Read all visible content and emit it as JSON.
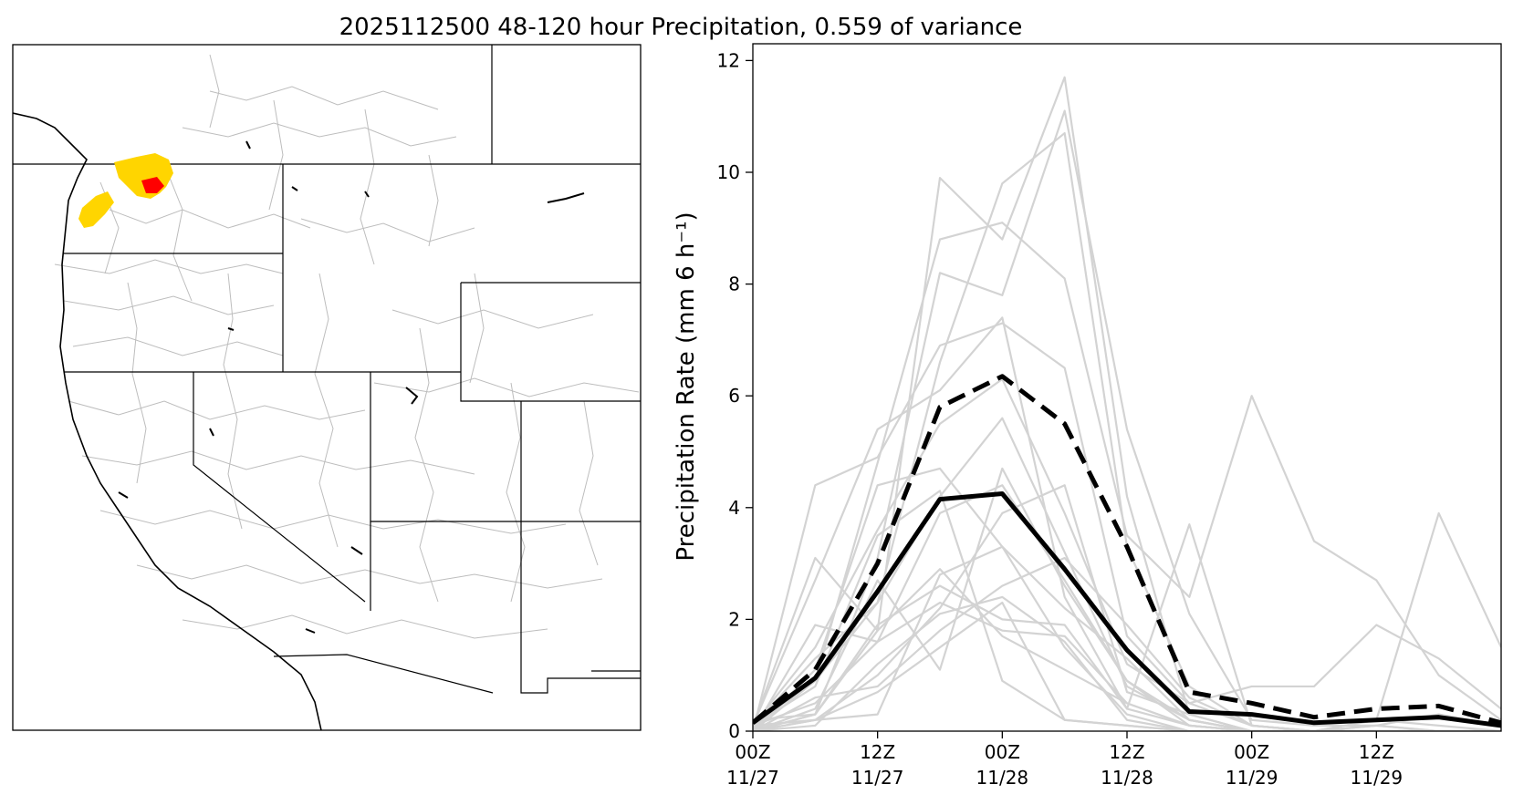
{
  "title": "2025112500 48-120 hour Precipitation, 0.559 of variance",
  "map": {
    "description_label": "Western US basin map",
    "colors": {
      "yellow": "#ffd500",
      "red": "#ff0000",
      "basin_lines": "#bdbdbd",
      "coast": "#000000"
    }
  },
  "chart_data": {
    "type": "line",
    "ylabel": "Precipitation Rate (mm 6 h⁻¹)",
    "ylim": [
      0,
      12.3
    ],
    "yticks": [
      0,
      2,
      4,
      6,
      8,
      10,
      12
    ],
    "xlim": [
      0,
      18
    ],
    "x": [
      0,
      1.5,
      3,
      4.5,
      6,
      7.5,
      9,
      10.5,
      12,
      13.5,
      15,
      16.5,
      18
    ],
    "xticks": [
      {
        "x": 0,
        "line1": "00Z",
        "line2": "11/27"
      },
      {
        "x": 3,
        "line1": "12Z",
        "line2": "11/27"
      },
      {
        "x": 6,
        "line1": "00Z",
        "line2": "11/28"
      },
      {
        "x": 9,
        "line1": "12Z",
        "line2": "11/28"
      },
      {
        "x": 12,
        "line1": "00Z",
        "line2": "11/29"
      },
      {
        "x": 15,
        "line1": "12Z",
        "line2": "11/29"
      }
    ],
    "colors": {
      "members": "#d3d3d3",
      "main": "#000000"
    },
    "series": [
      {
        "name": "member-1",
        "style": "member",
        "values": [
          0.1,
          3.1,
          1.8,
          9.9,
          8.8,
          11.7,
          4.2,
          0.3,
          0.0,
          0.0,
          0.1,
          0.0,
          0.0
        ]
      },
      {
        "name": "member-2",
        "style": "member",
        "values": [
          0.1,
          1.3,
          2.3,
          6.6,
          9.8,
          10.7,
          3.3,
          0.8,
          0.1,
          0.0,
          0.2,
          0.1,
          0.0
        ]
      },
      {
        "name": "member-3",
        "style": "member",
        "values": [
          0.2,
          0.3,
          3.1,
          8.2,
          7.8,
          11.1,
          5.4,
          2.1,
          0.2,
          0.1,
          0.1,
          0.0,
          0.0
        ]
      },
      {
        "name": "member-4",
        "style": "member",
        "values": [
          0.1,
          0.9,
          4.8,
          8.8,
          9.1,
          8.1,
          3.5,
          2.4,
          6.0,
          3.4,
          2.7,
          1.0,
          0.2
        ]
      },
      {
        "name": "member-5",
        "style": "member",
        "values": [
          0.0,
          4.4,
          4.9,
          6.9,
          7.3,
          6.5,
          1.7,
          0.5,
          0.8,
          0.8,
          1.9,
          1.3,
          0.4
        ]
      },
      {
        "name": "member-6",
        "style": "member",
        "values": [
          0.1,
          2.7,
          5.4,
          6.1,
          7.4,
          2.4,
          0.4,
          3.7,
          0.1,
          0.0,
          0.2,
          3.9,
          1.5
        ]
      },
      {
        "name": "member-7",
        "style": "member",
        "values": [
          0.1,
          1.5,
          3.6,
          5.5,
          6.3,
          3.9,
          1.2,
          0.5,
          0.1,
          0.0,
          0.1,
          0.3,
          0.1
        ]
      },
      {
        "name": "member-8",
        "style": "member",
        "values": [
          0.0,
          0.9,
          2.3,
          4.2,
          5.6,
          3.2,
          0.8,
          0.2,
          0.0,
          0.0,
          0.0,
          0.0,
          0.0
        ]
      },
      {
        "name": "member-9",
        "style": "member",
        "values": [
          0.1,
          0.5,
          1.6,
          3.9,
          4.4,
          2.7,
          0.9,
          0.1,
          0.0,
          0.0,
          0.0,
          0.0,
          0.0
        ]
      },
      {
        "name": "member-10",
        "style": "member",
        "values": [
          0.0,
          0.3,
          1.9,
          2.6,
          2.0,
          1.9,
          0.4,
          0.1,
          0.0,
          0.0,
          0.0,
          0.0,
          0.0
        ]
      },
      {
        "name": "member-11",
        "style": "member",
        "values": [
          0.0,
          1.1,
          4.4,
          4.7,
          3.3,
          1.5,
          0.3,
          0.0,
          0.0,
          0.0,
          0.0,
          0.0,
          0.0
        ]
      },
      {
        "name": "member-12",
        "style": "member",
        "values": [
          0.1,
          0.2,
          1.0,
          2.2,
          3.9,
          4.4,
          0.7,
          0.3,
          0.0,
          0.0,
          0.0,
          0.0,
          0.0
        ]
      },
      {
        "name": "member-13",
        "style": "member",
        "values": [
          0.0,
          0.6,
          0.8,
          1.8,
          2.6,
          3.1,
          1.9,
          0.6,
          0.1,
          0.0,
          0.0,
          0.0,
          0.0
        ]
      },
      {
        "name": "member-14",
        "style": "member",
        "values": [
          0.0,
          0.4,
          2.7,
          1.1,
          4.7,
          2.6,
          0.9,
          0.2,
          0.0,
          0.0,
          0.0,
          0.0,
          0.0
        ]
      },
      {
        "name": "member-15",
        "style": "member",
        "values": [
          0.1,
          0.8,
          3.5,
          4.3,
          0.9,
          0.2,
          0.1,
          0.0,
          0.0,
          0.0,
          0.0,
          0.0,
          0.0
        ]
      },
      {
        "name": "member-16",
        "style": "member",
        "values": [
          0.0,
          0.2,
          0.3,
          2.8,
          3.3,
          2.2,
          1.3,
          0.2,
          0.0,
          0.0,
          0.0,
          0.0,
          0.0
        ]
      },
      {
        "name": "member-17",
        "style": "member",
        "values": [
          0.0,
          1.9,
          1.6,
          2.3,
          1.8,
          1.7,
          0.5,
          0.1,
          0.0,
          0.0,
          0.0,
          0.0,
          0.0
        ]
      },
      {
        "name": "member-18",
        "style": "member",
        "values": [
          0.0,
          0.2,
          0.7,
          1.5,
          2.3,
          0.2,
          0.1,
          0.0,
          0.0,
          0.0,
          0.0,
          0.0,
          0.0
        ]
      },
      {
        "name": "member-19",
        "style": "member",
        "values": [
          0.0,
          0.1,
          1.2,
          2.1,
          2.4,
          1.6,
          0.2,
          0.0,
          0.0,
          0.0,
          0.0,
          0.0,
          0.0
        ]
      },
      {
        "name": "member-20",
        "style": "member",
        "values": [
          0.0,
          0.3,
          1.8,
          2.9,
          1.7,
          1.1,
          0.5,
          0.1,
          0.0,
          0.0,
          0.0,
          0.0,
          0.0
        ]
      },
      {
        "name": "ensemble-mean",
        "style": "solid",
        "values": [
          0.15,
          0.95,
          2.5,
          4.15,
          4.25,
          2.9,
          1.45,
          0.35,
          0.3,
          0.15,
          0.2,
          0.25,
          0.1
        ]
      },
      {
        "name": "projection",
        "style": "dashed",
        "values": [
          0.15,
          1.1,
          3.0,
          5.8,
          6.35,
          5.5,
          3.3,
          0.7,
          0.5,
          0.25,
          0.4,
          0.45,
          0.15
        ]
      }
    ]
  }
}
